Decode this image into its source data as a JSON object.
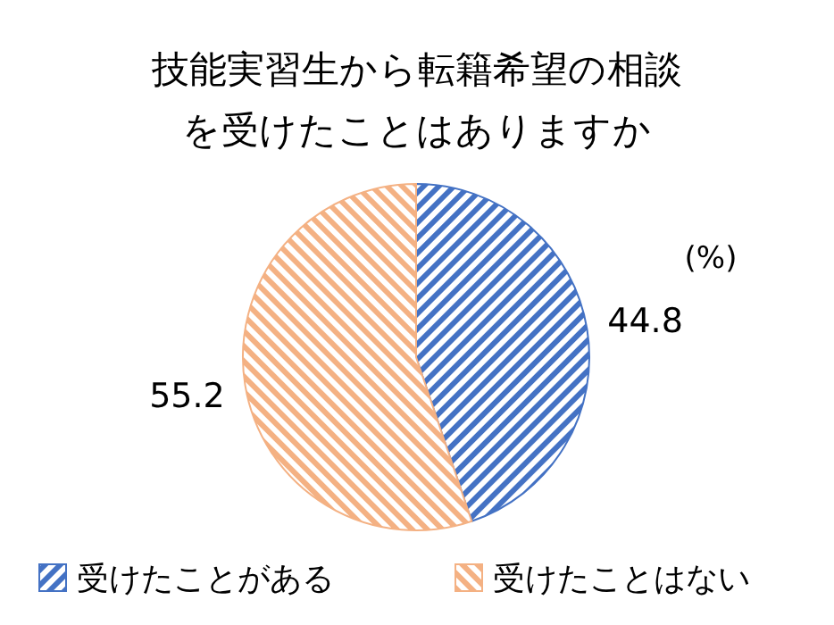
{
  "chart_data": {
    "type": "pie",
    "title": "技能実習生から転籍希望の相談を受けたことはありますか",
    "categories": [
      "受けたことがある",
      "受けたことはない"
    ],
    "values": [
      44.8,
      55.2
    ],
    "colors": [
      "#4472c4",
      "#f4b183"
    ],
    "data_labels": true,
    "legend": "bottom",
    "annotations": [
      "(%)"
    ]
  }
}
